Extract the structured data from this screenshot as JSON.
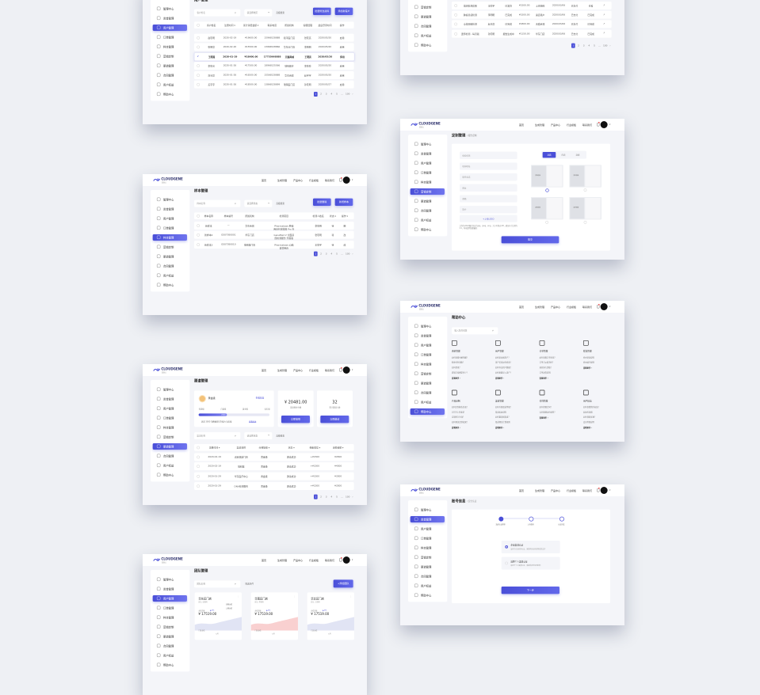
{
  "brand": {
    "name": "CLOUDGENE",
    "tagline": "基因云"
  },
  "nav": [
    "首页",
    "生成管理",
    "产品中心",
    "行业模板",
    "联系我们"
  ],
  "sidebar": [
    "管理中心",
    "资金管理",
    "用户管理",
    "订单管理",
    "样本管理",
    "营销定制",
    "渠道管理",
    "合同管理",
    "用户权益",
    "帮助中心"
  ],
  "colors": {
    "accent": "#4a4fd8",
    "background": "#f4f5f9",
    "team_chart_red": "#f4a9a9",
    "team_chart_blue": "#c9cdeb"
  },
  "pagination": [
    "1",
    "2",
    "3",
    "4",
    "5",
    "...",
    "100"
  ],
  "panels": {
    "users": {
      "title": "用户管理",
      "active": 2,
      "search_placeholder": "客户姓名",
      "select": "请选择地区",
      "filter": "高级搜索",
      "buttons": [
        "批量修改资料",
        "添加新客户"
      ],
      "columns": [
        "客户姓名",
        "注册时间 ▾",
        "累计消费金额 ▾",
        "联系电话",
        "所属机构",
        "客服经理",
        "最后登录时间",
        "操作"
      ],
      "rows": [
        [
          "赵晓明",
          "2020-02-19",
          "¥19600.00",
          "15966528888",
          "和平医门店",
          "张晓亮",
          "2020/05/20",
          "启用"
        ],
        [
          "张明亮",
          "2020-02-20",
          "¥15500.00",
          "13966528866",
          "华东分门店",
          "李明明",
          "2020/05/20",
          "启用"
        ],
        [
          "王晓燕",
          "2020-01-29",
          "¥18600.00",
          "17755668888",
          "天猫商城",
          "王晓亮",
          "2020/05/20",
          "停用"
        ],
        [
          "李晓光",
          "2020-01-26",
          "¥17500.00",
          "18966525566",
          "瑞码医疗",
          "李晓晓",
          "2020/05/20",
          "启用"
        ],
        [
          "刘光亮",
          "2020-01-26",
          "¥16500.00",
          "15566528888",
          "华东商城",
          "赵宇宇",
          "2020/05/20",
          "启用"
        ],
        [
          "孟宇宇",
          "2020-01-26",
          "¥18500.00",
          "13866528899",
          "瑞码医门店",
          "孙晓明",
          "2020/05/27",
          "启用"
        ]
      ],
      "selected_row": 2
    },
    "orders": {
      "title": "订单管理",
      "active": 3,
      "rows": [
        [
          "基因检测套餐",
          "王晓宇",
          "已发货",
          "¥1500.00",
          "上海瑞码",
          "2020/03/06",
          "已支付",
          "查看"
        ],
        [
          "肿瘤易感检测",
          "李明明",
          "已完成",
          "¥1500.00",
          "渠道用户",
          "2020/03/06",
          "已支付",
          "已完成"
        ],
        [
          "全基因组检测",
          "赵光亮",
          "已完成",
          "¥1800.00",
          "天猫商城",
          "2020/03/06",
          "已支付",
          "已完成"
        ],
        [
          "遗传检测 - 每月版",
          "孙晓明",
          "报告生成中",
          "¥1150.00",
          "华东门店",
          "2020/03/06",
          "已支付",
          "已完成"
        ]
      ]
    },
    "custom": {
      "title": "定制管理",
      "subtitle": "/ 报告定制",
      "active": 5,
      "fields": [
        "机构名称",
        "机构地址",
        "联系电话",
        "网址",
        "邮箱",
        "简介"
      ],
      "upload": "+上传LOGO",
      "note": "上传的LOGO图片格式为jpg、jpeg、png，大小不超过2M，建议尺寸比例为1:1，背景透明效果最佳",
      "tabs": [
        "封面",
        "内页",
        "封底"
      ],
      "active_tab": 0,
      "thumb_label": "报告模板",
      "selected_thumb": 0,
      "submit": "提交"
    },
    "samples": {
      "title": "样本管理",
      "active": 4,
      "search_placeholder": "样本名称",
      "select": "请选择状态",
      "filter": "高级搜索",
      "buttons": [
        "批量删除",
        "新增样本"
      ],
      "columns": [
        "样本名称",
        "样本编号",
        "所属机构",
        "检测项目",
        "检测人姓名",
        "状态 ▾",
        "操作 ▾"
      ],
      "rows": [
        [
          "新样本",
          "—",
          "华东商城",
          "Pharmabase 肿瘤用药代谢基因 Pro 升级版",
          "李晓明",
          "待",
          "删"
        ],
        [
          "新样本2",
          "GS07050001",
          "华东门店",
          "GeneMed 2 全面基因检测服务 升级版",
          "张晓明",
          "待",
          "改"
        ],
        [
          "新样本3",
          "GS07050010",
          "瑞码医门店",
          "Pharmabase 心脑血管用药",
          "王晓宇",
          "待",
          "改"
        ]
      ]
    },
    "help": {
      "title": "帮助中心",
      "active": 9,
      "search_placeholder": "输入您的问题",
      "more": "查看更多 ›",
      "categories": [
        {
          "title": "资金管理",
          "questions": [
            "如何查看余额明细？",
            "佣金何时到账？",
            "如何提现？",
            "提现手续费是多少？"
          ]
        },
        {
          "title": "用户管理",
          "questions": [
            "如何添加新用户？",
            "用户信息如何修改？",
            "如何导出用户数据？",
            "如何批量导入用户？"
          ]
        },
        {
          "title": "订单管理",
          "questions": [
            "如何查看订单状态？",
            "订单可以取消吗？",
            "退款多久到账？",
            "订单发货说明"
          ]
        },
        {
          "title": "样本管理",
          "questions": [
            "样本寄送说明",
            "样本编号规则"
          ]
        },
        {
          "title": "产品定制",
          "questions": [
            "如何定制报告封面？",
            "LOGO上传要求",
            "定制多久生效？",
            "如何预览定制效果？"
          ]
        },
        {
          "title": "渠道管理",
          "questions": [
            "如何升级渠道等级？",
            "渠道权益说明",
            "如何邀请新渠道？",
            "渠道佣金计算规则"
          ]
        },
        {
          "title": "合同管理",
          "questions": [
            "如何签署合同？",
            "合同到期如何续签？"
          ]
        },
        {
          "title": "用户权益",
          "questions": [
            "如何查看我的权益？",
            "权益有效期",
            "如何领取优惠？",
            "会员等级说明"
          ]
        }
      ]
    },
    "channel": {
      "title": "渠道管理",
      "active": 6,
      "level": "黄金级",
      "benefits_link": "查看权益",
      "levels": [
        "普通级",
        "白银级",
        "黄金级",
        "钻石级"
      ],
      "progress_label": "2000",
      "progress": 0.4,
      "note": "还差 3000 消费额即可升级为 钻石级",
      "note_link": "查看权益",
      "balance": "¥ 20481.00",
      "balance_label": "渠道佣金余额",
      "withdraw": "立即提现",
      "invites": "32",
      "invites_label": "累计邀请人数",
      "invite": "立即邀请",
      "search_placeholder": "渠道名称",
      "select": "请选择状态",
      "filter": "高级搜索",
      "columns": [
        "注册时间 ▾",
        "渠道名称",
        "分佣等级 ▾",
        "状态 ▾",
        "佣金收益 ▾",
        "消费金额 ▾"
      ],
      "rows": [
        [
          "2020-02-19",
          "诺菲亚斯门店",
          "黄金级",
          "邀请成功",
          "+¥1500",
          "¥4500"
        ],
        [
          "2020-02-19",
          "瑞码医",
          "黄金级",
          "邀请成功",
          "+¥1500",
          "¥4500"
        ],
        [
          "2020-01-29",
          "华东医疗中心",
          "黄金级",
          "邀请成功",
          "+¥1500",
          "¥3500"
        ],
        [
          "2020-01-29",
          "DNA检测服务",
          "黄金级",
          "邀请成功",
          "+¥1500",
          "¥3500"
        ]
      ]
    },
    "account": {
      "title": "账号信息",
      "subtitle": "/ 安全认证",
      "active": 1,
      "steps": [
        "选择认证类型",
        "上传资料",
        "认证完成"
      ],
      "current_step": 0,
      "options": [
        {
          "title": "企业渠道认证",
          "desc": "适用于企业机构认证，需提供营业执照等资质文件"
        },
        {
          "title": "选择个人渠道认证",
          "desc": "适用于个人渠道认证，需提供身份证明材料"
        }
      ],
      "selected_option": 0,
      "next": "下一步"
    },
    "team": {
      "title": "团队管理",
      "active": 2,
      "search_placeholder": "团队名称",
      "filter": "筛选条件",
      "add": "+添加团队",
      "cards": [
        {
          "name": "华东区门店",
          "leader": "区长: 张晓明",
          "metric": "业绩总额",
          "change": "▲ 8%",
          "amount": "¥ 17519.00",
          "legend": [
            "本期业绩",
            "上期业绩"
          ],
          "footer": "门店业绩",
          "month": "5月"
        },
        {
          "name": "华南区门店",
          "leader": "区长: 李晓明",
          "metric": "业绩总额",
          "change": "▲ 8%",
          "amount": "¥ 17519.00",
          "footer": "门店业绩",
          "month": "5月"
        },
        {
          "name": "华北区门店",
          "leader": "区长: 王晓明",
          "metric": "业绩总额",
          "change": "▲ 8%",
          "amount": "¥ 17519.00",
          "footer": "门店业绩",
          "month": "5月"
        }
      ]
    }
  }
}
